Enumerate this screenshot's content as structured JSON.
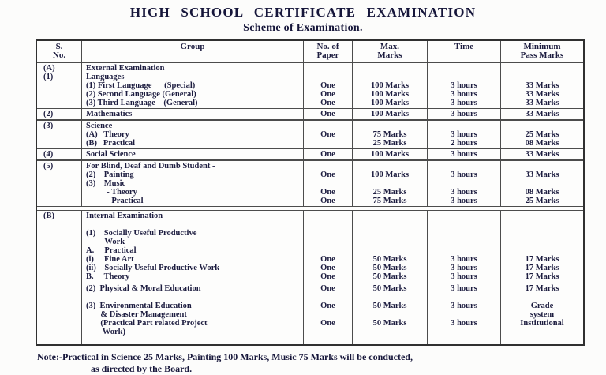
{
  "page": {
    "title": "HIGH SCHOOL CERTIFICATE EXAMINATION",
    "subtitle": "Scheme of Examination."
  },
  "table": {
    "headers": [
      {
        "line1": "S.",
        "line2": "No."
      },
      {
        "line1": "Group",
        "line2": ""
      },
      {
        "line1": "No. of",
        "line2": "Paper"
      },
      {
        "line1": "Max.",
        "line2": "Marks"
      },
      {
        "line1": "Time",
        "line2": ""
      },
      {
        "line1": "Minimum",
        "line2": "Pass Marks"
      }
    ],
    "blocks": [
      {
        "sno": [
          "(A)",
          "(1)"
        ],
        "lines": [
          {
            "group": "External Examination"
          },
          {
            "group": "Languages"
          },
          {
            "group": "(1) First Language      (Special)",
            "paper": "One",
            "marks": "100 Marks",
            "time": "3 hours",
            "pass": "33 Marks"
          },
          {
            "group": "(2) Second Language (General)",
            "paper": "One",
            "marks": "100 Marks",
            "time": "3 hours",
            "pass": "33 Marks"
          },
          {
            "group": "(3) Third Language    (General)",
            "paper": "One",
            "marks": "100 Marks",
            "time": "3 hours",
            "pass": "33 Marks"
          }
        ]
      },
      {
        "sno": [
          "(2)"
        ],
        "lines": [
          {
            "group": "Mathematics",
            "paper": "One",
            "marks": "100 Marks",
            "time": "3 hours",
            "pass": "33 Marks"
          }
        ]
      },
      {
        "sno": [
          "(3)"
        ],
        "lines": [
          {
            "group": "Science"
          },
          {
            "group": "(A)   Theory",
            "paper": "One",
            "marks": "75 Marks",
            "time": "3 hours",
            "pass": "25 Marks"
          },
          {
            "group": "(B)   Practical",
            "marks": "25 Marks",
            "time": "2 hours",
            "pass": "08 Marks"
          }
        ]
      },
      {
        "sno": [
          "(4)"
        ],
        "lines": [
          {
            "group": "Social Science",
            "paper": "One",
            "marks": "100 Marks",
            "time": "3 hours",
            "pass": "33 Marks"
          }
        ]
      },
      {
        "sno": [
          "(5)"
        ],
        "lines": [
          {
            "group": "For Blind, Deaf and Dumb Student -"
          },
          {
            "group": "(2)    Painting",
            "paper": "One",
            "marks": "100 Marks",
            "time": "3 hours",
            "pass": "33 Marks"
          },
          {
            "group": "(3)    Music"
          },
          {
            "group": "          - Theory",
            "paper": "One",
            "marks": "25 Marks",
            "time": "3 hours",
            "pass": "08 Marks"
          },
          {
            "group": "          - Practical",
            "paper": "One",
            "marks": "75 Marks",
            "time": "3 hours",
            "pass": "25 Marks"
          }
        ]
      },
      {
        "sno": [
          "(B)"
        ],
        "wide_gap_before": true,
        "lines": [
          {
            "group": "Internal Examination"
          },
          {
            "group": ""
          },
          {
            "group": "(1)    Socially Useful Productive"
          },
          {
            "group": "         Work"
          },
          {
            "group": "A.     Practical"
          },
          {
            "group": "(i)     Fine Art",
            "paper": "One",
            "marks": "50 Marks",
            "time": "3 hours",
            "pass": "17 Marks"
          },
          {
            "group": "(ii)    Socially Useful Productive Work",
            "paper": "One",
            "marks": "50 Marks",
            "time": "3 hours",
            "pass": "17 Marks"
          },
          {
            "group": "B.     Theory",
            "paper": "One",
            "marks": "50 Marks",
            "time": "3 hours",
            "pass": "17 Marks"
          },
          {
            "group": "(2)  Physical & Moral Education",
            "paper": "One",
            "marks": "50 Marks",
            "time": "3 hours",
            "pass": "17 Marks",
            "spacer_before": true
          },
          {
            "group": ""
          },
          {
            "group": "(3)  Environmental Education",
            "paper": "One",
            "marks": "50 Marks",
            "time": "3 hours",
            "pass": "Grade"
          },
          {
            "group": "       & Disaster Management",
            "pass": "system"
          },
          {
            "group": "       (Practical Part related Project",
            "paper": "One",
            "marks": "50 Marks",
            "time": "3 hours",
            "pass": "Institutional"
          },
          {
            "group": "        Work)"
          }
        ]
      }
    ]
  },
  "note": {
    "label": "Note:-",
    "line1": "Practical in Science 25 Marks, Painting 100 Marks, Music 75 Marks will be conducted,",
    "line2": "as directed by the Board."
  }
}
